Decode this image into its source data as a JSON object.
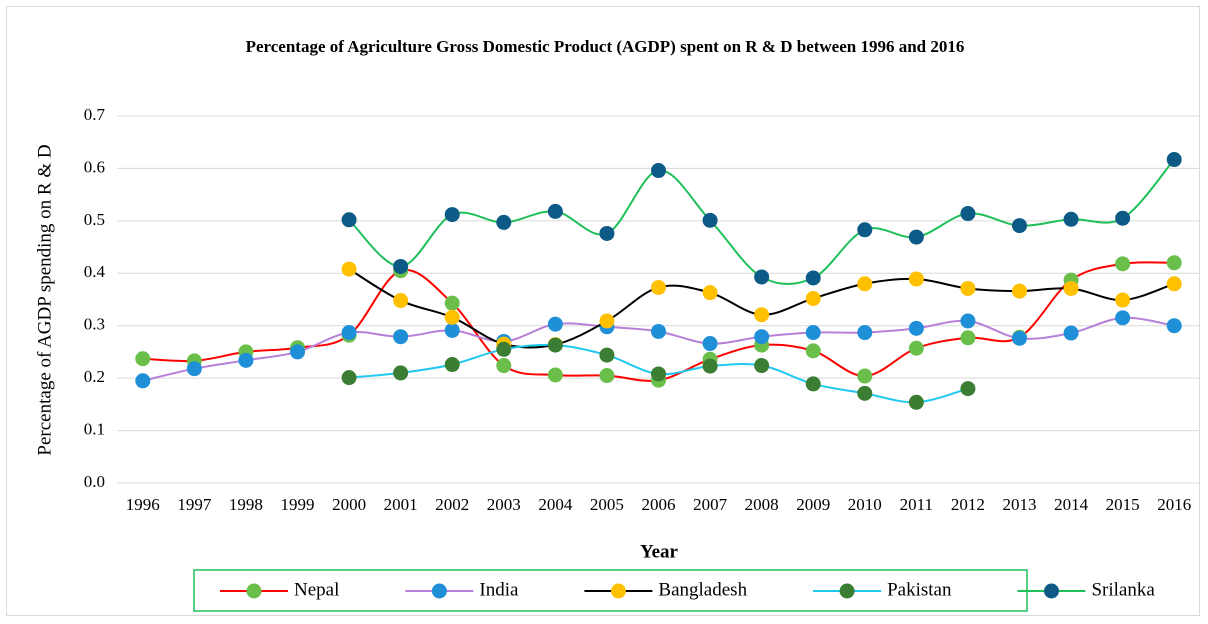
{
  "chart_data": {
    "type": "line",
    "title": "Percentage of Agriculture Gross Domestic Product (AGDP) spent on R & D between 1996 and 2016",
    "x_label": "Year",
    "y_label": "Percentage of AGDP spending on R & D",
    "categories": [
      "1996",
      "1997",
      "1998",
      "1999",
      "2000",
      "2001",
      "2002",
      "2003",
      "2004",
      "2005",
      "2006",
      "2007",
      "2008",
      "2009",
      "2010",
      "2011",
      "2012",
      "2013",
      "2014",
      "2015",
      "2016"
    ],
    "ylim": [
      0,
      0.7
    ],
    "yticks": [
      {
        "value": 0,
        "label": "0.0"
      },
      0.1,
      0.2,
      0.3,
      0.4,
      0.5,
      0.6,
      0.7
    ],
    "grid": true,
    "legend": "bottom",
    "smooth": true,
    "series": [
      {
        "name": "Nepal",
        "color": "#ff0000",
        "marker_color": "#6abf4b",
        "values": [
          0.237,
          0.233,
          0.25,
          0.258,
          0.282,
          0.405,
          0.343,
          0.224,
          0.206,
          0.205,
          0.196,
          0.236,
          0.263,
          0.252,
          0.204,
          0.257,
          0.277,
          0.278,
          0.387,
          0.418,
          0.42
        ]
      },
      {
        "name": "India",
        "color": "#b77fd8",
        "marker_color": "#1f8fd8",
        "values": [
          0.195,
          0.218,
          0.234,
          0.25,
          0.287,
          0.279,
          0.291,
          0.27,
          0.303,
          0.298,
          0.289,
          0.266,
          0.279,
          0.287,
          0.287,
          0.295,
          0.309,
          0.276,
          0.286,
          0.315,
          0.3
        ]
      },
      {
        "name": "Bangladesh",
        "color": "#000000",
        "marker_color": "#ffc000",
        "values": [
          null,
          null,
          null,
          null,
          0.408,
          0.348,
          0.316,
          0.265,
          0.264,
          0.309,
          0.373,
          0.363,
          0.321,
          0.352,
          0.38,
          0.389,
          0.371,
          0.366,
          0.371,
          0.349,
          0.38
        ]
      },
      {
        "name": "Pakistan",
        "color": "#1ec8ef",
        "marker_color": "#3a7d33",
        "values": [
          null,
          null,
          null,
          null,
          0.201,
          0.21,
          0.226,
          0.255,
          0.263,
          0.244,
          0.208,
          0.223,
          0.224,
          0.189,
          0.171,
          0.154,
          0.18,
          null,
          null,
          null,
          null
        ]
      },
      {
        "name": "Srilanka",
        "color": "#1fbf5a",
        "marker_color": "#0d5a86",
        "values": [
          null,
          null,
          null,
          null,
          0.502,
          0.413,
          0.512,
          0.497,
          0.518,
          0.476,
          0.596,
          0.501,
          0.393,
          0.391,
          0.483,
          0.469,
          0.514,
          0.491,
          0.503,
          0.505,
          0.617
        ]
      }
    ]
  }
}
